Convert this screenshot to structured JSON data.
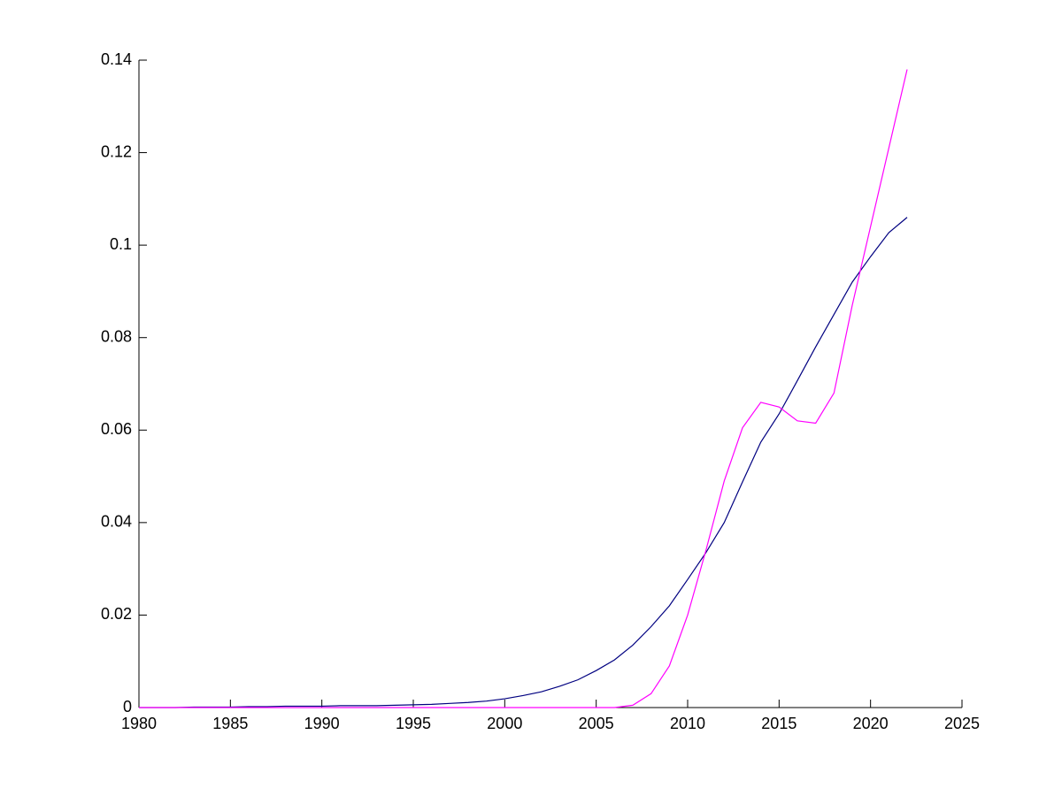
{
  "chart_data": {
    "type": "line",
    "x": [
      1980,
      1981,
      1982,
      1983,
      1984,
      1985,
      1986,
      1987,
      1988,
      1989,
      1990,
      1991,
      1992,
      1993,
      1994,
      1995,
      1996,
      1997,
      1998,
      1999,
      2000,
      2001,
      2002,
      2003,
      2004,
      2005,
      2006,
      2007,
      2008,
      2009,
      2010,
      2011,
      2012,
      2013,
      2014,
      2015,
      2016,
      2017,
      2018,
      2019,
      2020,
      2021,
      2022
    ],
    "series": [
      {
        "color": "#000080",
        "values": [
          0,
          0,
          0,
          0.0001,
          0.0001,
          0.0001,
          0.0002,
          0.0002,
          0.0003,
          0.0003,
          0.0003,
          0.0004,
          0.0004,
          0.0004,
          0.0005,
          0.0006,
          0.0007,
          0.0009,
          0.0011,
          0.0014,
          0.0019,
          0.0026,
          0.0034,
          0.0046,
          0.006,
          0.008,
          0.0103,
          0.0135,
          0.0175,
          0.022,
          0.0277,
          0.0335,
          0.04,
          0.0488,
          0.0574,
          0.0635,
          0.0707,
          0.078,
          0.085,
          0.092,
          0.0975,
          0.1027,
          0.106
        ]
      },
      {
        "color": "#ff00ff",
        "values": [
          0,
          0,
          0,
          0,
          0,
          0,
          0,
          0,
          0,
          0,
          0,
          0,
          0,
          0,
          0,
          0,
          0,
          0,
          0,
          0,
          0,
          0,
          0,
          0,
          0,
          0,
          0,
          0.0005,
          0.003,
          0.009,
          0.02,
          0.034,
          0.049,
          0.0605,
          0.066,
          0.065,
          0.062,
          0.0615,
          0.068,
          0.087,
          0.104,
          0.121,
          0.138
        ]
      }
    ],
    "xlim": [
      1980,
      2025
    ],
    "xticks": [
      1980,
      1985,
      1990,
      1995,
      2000,
      2005,
      2010,
      2015,
      2020,
      2025
    ],
    "ylim": [
      0,
      0.14
    ],
    "yticks": [
      0,
      0.02,
      0.04,
      0.06,
      0.08,
      0.1,
      0.12,
      0.14
    ],
    "grid": false
  }
}
